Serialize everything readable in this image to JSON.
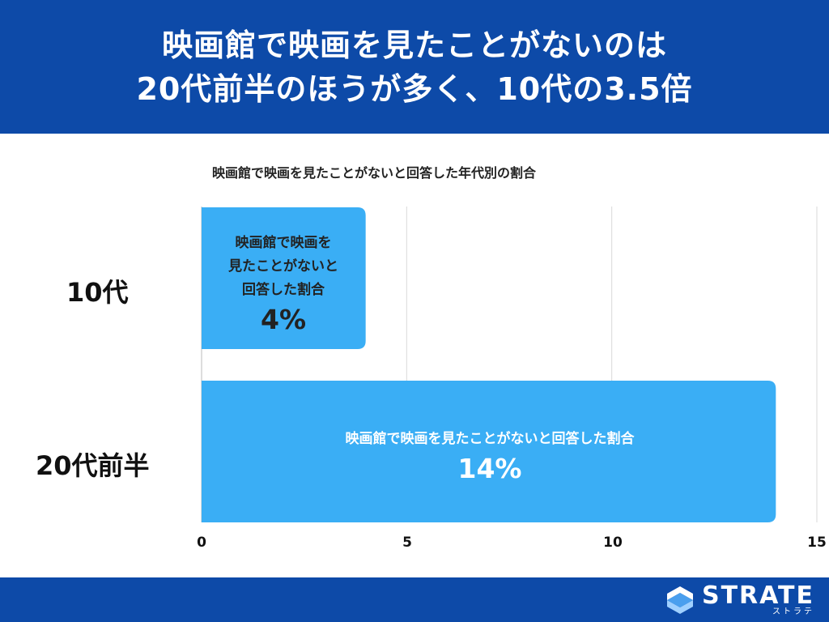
{
  "header": {
    "line1": "映画館で映画を見たことがないのは",
    "line2": "20代前半のほうが多く、10代の3.5倍"
  },
  "chart_data": {
    "type": "bar",
    "orientation": "horizontal",
    "title": "映画館で映画を見たことがないと回答した年代別の割合",
    "categories": [
      "10代",
      "20代前半"
    ],
    "series": [
      {
        "values": [
          4,
          14
        ]
      }
    ],
    "bar_labels": [
      {
        "caption_lines": [
          "映画館で映画を",
          "見たことがないと",
          "回答した割合"
        ],
        "value_text": "4%"
      },
      {
        "caption_lines": [
          "映画館で映画を見たことがないと回答した割合"
        ],
        "value_text": "14%"
      }
    ],
    "xlim": [
      0,
      15
    ],
    "xticks": [
      "0",
      "5",
      "10",
      "15"
    ],
    "grid": true,
    "bar_color": "#3aaef5"
  },
  "footer": {
    "brand": "STRATE",
    "brand_kana": "ストラテ",
    "color": "#0d4aa8"
  }
}
